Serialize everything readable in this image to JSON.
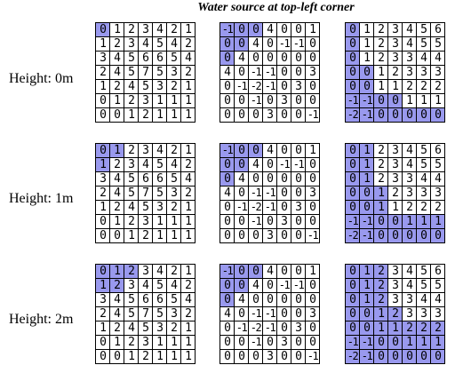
{
  "title": "Water source at top-left corner",
  "colors": {
    "highlight": "#9999ee",
    "background": "#ffffff",
    "line": "#000000"
  },
  "rows": [
    {
      "label": "Height: 0m",
      "grids": [
        {
          "values": [
            [
              0,
              1,
              2,
              3,
              4,
              2,
              1
            ],
            [
              1,
              2,
              3,
              4,
              5,
              4,
              2
            ],
            [
              3,
              4,
              5,
              6,
              6,
              5,
              4
            ],
            [
              2,
              4,
              5,
              7,
              5,
              3,
              2
            ],
            [
              1,
              2,
              4,
              5,
              3,
              2,
              1
            ],
            [
              0,
              1,
              2,
              3,
              1,
              1,
              1
            ],
            [
              0,
              0,
              1,
              2,
              1,
              1,
              1
            ]
          ],
          "highlight": [
            [
              1,
              0,
              0,
              0,
              0,
              0,
              0
            ],
            [
              0,
              0,
              0,
              0,
              0,
              0,
              0
            ],
            [
              0,
              0,
              0,
              0,
              0,
              0,
              0
            ],
            [
              0,
              0,
              0,
              0,
              0,
              0,
              0
            ],
            [
              0,
              0,
              0,
              0,
              0,
              0,
              0
            ],
            [
              0,
              0,
              0,
              0,
              0,
              0,
              0
            ],
            [
              0,
              0,
              0,
              0,
              0,
              0,
              0
            ]
          ]
        },
        {
          "values": [
            [
              -1,
              0,
              0,
              4,
              0,
              0,
              1
            ],
            [
              0,
              0,
              4,
              0,
              -1,
              -1,
              0
            ],
            [
              0,
              4,
              0,
              0,
              0,
              0,
              0
            ],
            [
              4,
              0,
              -1,
              -1,
              0,
              0,
              3
            ],
            [
              0,
              -1,
              -2,
              -1,
              0,
              3,
              0
            ],
            [
              0,
              0,
              -1,
              0,
              3,
              0,
              0
            ],
            [
              0,
              0,
              0,
              3,
              0,
              0,
              -1
            ]
          ],
          "highlight": [
            [
              1,
              1,
              1,
              0,
              0,
              0,
              0
            ],
            [
              1,
              1,
              0,
              0,
              0,
              0,
              0
            ],
            [
              1,
              0,
              0,
              0,
              0,
              0,
              0
            ],
            [
              0,
              0,
              0,
              0,
              0,
              0,
              0
            ],
            [
              0,
              0,
              0,
              0,
              0,
              0,
              0
            ],
            [
              0,
              0,
              0,
              0,
              0,
              0,
              0
            ],
            [
              0,
              0,
              0,
              0,
              0,
              0,
              0
            ]
          ]
        },
        {
          "values": [
            [
              0,
              1,
              2,
              3,
              4,
              5,
              6
            ],
            [
              0,
              1,
              2,
              3,
              4,
              5,
              5
            ],
            [
              0,
              1,
              2,
              3,
              3,
              4,
              4
            ],
            [
              0,
              0,
              1,
              2,
              3,
              3,
              3
            ],
            [
              0,
              0,
              1,
              1,
              2,
              2,
              2
            ],
            [
              -1,
              -1,
              0,
              0,
              1,
              1,
              1
            ],
            [
              -2,
              -1,
              0,
              0,
              0,
              0,
              0
            ]
          ],
          "highlight": [
            [
              1,
              0,
              0,
              0,
              0,
              0,
              0
            ],
            [
              1,
              0,
              0,
              0,
              0,
              0,
              0
            ],
            [
              1,
              0,
              0,
              0,
              0,
              0,
              0
            ],
            [
              1,
              1,
              0,
              0,
              0,
              0,
              0
            ],
            [
              1,
              1,
              0,
              0,
              0,
              0,
              0
            ],
            [
              1,
              1,
              1,
              1,
              0,
              0,
              0
            ],
            [
              1,
              1,
              1,
              1,
              1,
              1,
              1
            ]
          ]
        }
      ]
    },
    {
      "label": "Height: 1m",
      "grids": [
        {
          "values": [
            [
              0,
              1,
              2,
              3,
              4,
              2,
              1
            ],
            [
              1,
              2,
              3,
              4,
              5,
              4,
              2
            ],
            [
              3,
              4,
              5,
              6,
              6,
              5,
              4
            ],
            [
              2,
              4,
              5,
              7,
              5,
              3,
              2
            ],
            [
              1,
              2,
              4,
              5,
              3,
              2,
              1
            ],
            [
              0,
              1,
              2,
              3,
              1,
              1,
              1
            ],
            [
              0,
              0,
              1,
              2,
              1,
              1,
              1
            ]
          ],
          "highlight": [
            [
              1,
              1,
              0,
              0,
              0,
              0,
              0
            ],
            [
              1,
              0,
              0,
              0,
              0,
              0,
              0
            ],
            [
              0,
              0,
              0,
              0,
              0,
              0,
              0
            ],
            [
              0,
              0,
              0,
              0,
              0,
              0,
              0
            ],
            [
              0,
              0,
              0,
              0,
              0,
              0,
              0
            ],
            [
              0,
              0,
              0,
              0,
              0,
              0,
              0
            ],
            [
              0,
              0,
              0,
              0,
              0,
              0,
              0
            ]
          ]
        },
        {
          "values": [
            [
              -1,
              0,
              0,
              4,
              0,
              0,
              1
            ],
            [
              0,
              0,
              4,
              0,
              -1,
              -1,
              0
            ],
            [
              0,
              4,
              0,
              0,
              0,
              0,
              0
            ],
            [
              4,
              0,
              -1,
              -1,
              0,
              0,
              3
            ],
            [
              0,
              -1,
              -2,
              -1,
              0,
              3,
              0
            ],
            [
              0,
              0,
              -1,
              0,
              3,
              0,
              0
            ],
            [
              0,
              0,
              0,
              3,
              0,
              0,
              -1
            ]
          ],
          "highlight": [
            [
              1,
              1,
              1,
              0,
              0,
              0,
              0
            ],
            [
              1,
              1,
              0,
              0,
              0,
              0,
              0
            ],
            [
              1,
              0,
              0,
              0,
              0,
              0,
              0
            ],
            [
              0,
              0,
              0,
              0,
              0,
              0,
              0
            ],
            [
              0,
              0,
              0,
              0,
              0,
              0,
              0
            ],
            [
              0,
              0,
              0,
              0,
              0,
              0,
              0
            ],
            [
              0,
              0,
              0,
              0,
              0,
              0,
              0
            ]
          ]
        },
        {
          "values": [
            [
              0,
              1,
              2,
              3,
              4,
              5,
              6
            ],
            [
              0,
              1,
              2,
              3,
              4,
              5,
              5
            ],
            [
              0,
              1,
              2,
              3,
              3,
              4,
              4
            ],
            [
              0,
              0,
              1,
              2,
              3,
              3,
              3
            ],
            [
              0,
              0,
              1,
              1,
              2,
              2,
              2
            ],
            [
              -1,
              -1,
              0,
              0,
              1,
              1,
              1
            ],
            [
              -2,
              -1,
              0,
              0,
              0,
              0,
              0
            ]
          ],
          "highlight": [
            [
              1,
              1,
              0,
              0,
              0,
              0,
              0
            ],
            [
              1,
              1,
              0,
              0,
              0,
              0,
              0
            ],
            [
              1,
              1,
              0,
              0,
              0,
              0,
              0
            ],
            [
              1,
              1,
              1,
              0,
              0,
              0,
              0
            ],
            [
              1,
              1,
              1,
              0,
              0,
              0,
              0
            ],
            [
              1,
              1,
              1,
              1,
              1,
              1,
              1
            ],
            [
              1,
              1,
              1,
              1,
              1,
              1,
              1
            ]
          ]
        }
      ]
    },
    {
      "label": "Height: 2m",
      "grids": [
        {
          "values": [
            [
              0,
              1,
              2,
              3,
              4,
              2,
              1
            ],
            [
              1,
              2,
              3,
              4,
              5,
              4,
              2
            ],
            [
              3,
              4,
              5,
              6,
              6,
              5,
              4
            ],
            [
              2,
              4,
              5,
              7,
              5,
              3,
              2
            ],
            [
              1,
              2,
              4,
              5,
              3,
              2,
              1
            ],
            [
              0,
              1,
              2,
              3,
              1,
              1,
              1
            ],
            [
              0,
              0,
              1,
              2,
              1,
              1,
              1
            ]
          ],
          "highlight": [
            [
              1,
              1,
              1,
              0,
              0,
              0,
              0
            ],
            [
              1,
              1,
              0,
              0,
              0,
              0,
              0
            ],
            [
              0,
              0,
              0,
              0,
              0,
              0,
              0
            ],
            [
              0,
              0,
              0,
              0,
              0,
              0,
              0
            ],
            [
              0,
              0,
              0,
              0,
              0,
              0,
              0
            ],
            [
              0,
              0,
              0,
              0,
              0,
              0,
              0
            ],
            [
              0,
              0,
              0,
              0,
              0,
              0,
              0
            ]
          ]
        },
        {
          "values": [
            [
              -1,
              0,
              0,
              4,
              0,
              0,
              1
            ],
            [
              0,
              0,
              4,
              0,
              -1,
              -1,
              0
            ],
            [
              0,
              4,
              0,
              0,
              0,
              0,
              0
            ],
            [
              4,
              0,
              -1,
              -1,
              0,
              0,
              3
            ],
            [
              0,
              -1,
              -2,
              -1,
              0,
              3,
              0
            ],
            [
              0,
              0,
              -1,
              0,
              3,
              0,
              0
            ],
            [
              0,
              0,
              0,
              3,
              0,
              0,
              -1
            ]
          ],
          "highlight": [
            [
              1,
              1,
              1,
              0,
              0,
              0,
              0
            ],
            [
              1,
              1,
              0,
              0,
              0,
              0,
              0
            ],
            [
              1,
              0,
              0,
              0,
              0,
              0,
              0
            ],
            [
              0,
              0,
              0,
              0,
              0,
              0,
              0
            ],
            [
              0,
              0,
              0,
              0,
              0,
              0,
              0
            ],
            [
              0,
              0,
              0,
              0,
              0,
              0,
              0
            ],
            [
              0,
              0,
              0,
              0,
              0,
              0,
              0
            ]
          ]
        },
        {
          "values": [
            [
              0,
              1,
              2,
              3,
              4,
              5,
              6
            ],
            [
              0,
              1,
              2,
              3,
              4,
              5,
              5
            ],
            [
              0,
              1,
              2,
              3,
              3,
              4,
              4
            ],
            [
              0,
              0,
              1,
              2,
              3,
              3,
              3
            ],
            [
              0,
              0,
              1,
              1,
              2,
              2,
              2
            ],
            [
              -1,
              -1,
              0,
              0,
              1,
              1,
              1
            ],
            [
              -2,
              -1,
              0,
              0,
              0,
              0,
              0
            ]
          ],
          "highlight": [
            [
              1,
              1,
              1,
              0,
              0,
              0,
              0
            ],
            [
              1,
              1,
              1,
              0,
              0,
              0,
              0
            ],
            [
              1,
              1,
              1,
              0,
              0,
              0,
              0
            ],
            [
              1,
              1,
              1,
              1,
              0,
              0,
              0
            ],
            [
              1,
              1,
              1,
              1,
              1,
              1,
              1
            ],
            [
              1,
              1,
              1,
              1,
              1,
              1,
              1
            ],
            [
              1,
              1,
              1,
              1,
              1,
              1,
              1
            ]
          ]
        }
      ]
    }
  ]
}
